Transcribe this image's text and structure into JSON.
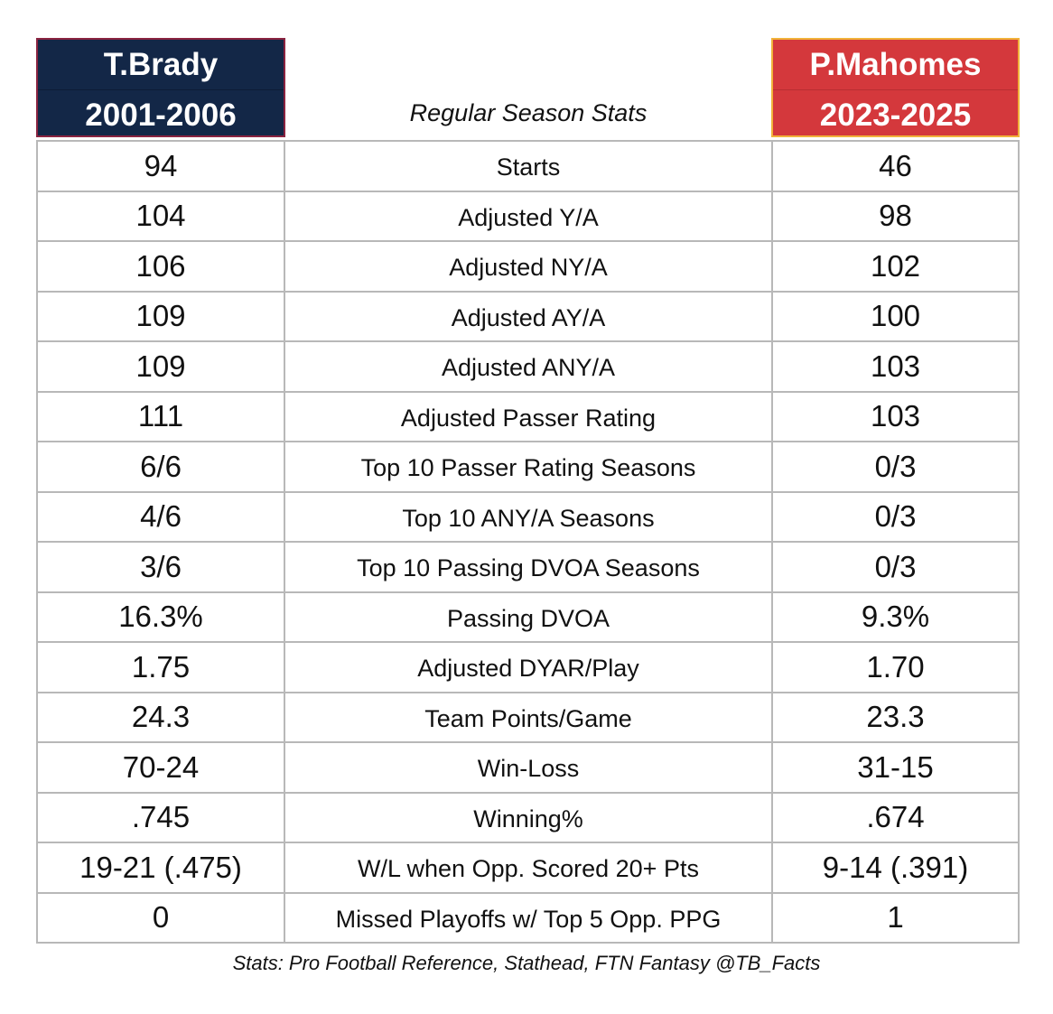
{
  "header": {
    "left_name": "T.Brady",
    "left_years": "2001-2006",
    "center_title": "Regular Season Stats",
    "right_name": "P.Mahomes",
    "right_years": "2023-2025",
    "left_color": "#132747",
    "right_color": "#d4383c"
  },
  "rows": [
    {
      "left": "94",
      "stat": "Starts",
      "right": "46"
    },
    {
      "left": "104",
      "stat": "Adjusted Y/A",
      "right": "98"
    },
    {
      "left": "106",
      "stat": "Adjusted NY/A",
      "right": "102"
    },
    {
      "left": "109",
      "stat": "Adjusted AY/A",
      "right": "100"
    },
    {
      "left": "109",
      "stat": "Adjusted ANY/A",
      "right": "103"
    },
    {
      "left": "111",
      "stat": "Adjusted Passer Rating",
      "right": "103"
    },
    {
      "left": "6/6",
      "stat": "Top 10 Passer Rating Seasons",
      "right": "0/3"
    },
    {
      "left": "4/6",
      "stat": "Top 10 ANY/A Seasons",
      "right": "0/3"
    },
    {
      "left": "3/6",
      "stat": "Top 10 Passing DVOA Seasons",
      "right": "0/3"
    },
    {
      "left": "16.3%",
      "stat": "Passing DVOA",
      "right": "9.3%"
    },
    {
      "left": "1.75",
      "stat": "Adjusted DYAR/Play",
      "right": "1.70"
    },
    {
      "left": "24.3",
      "stat": "Team Points/Game",
      "right": "23.3"
    },
    {
      "left": "70-24",
      "stat": "Win-Loss",
      "right": "31-15"
    },
    {
      "left": ".745",
      "stat": "Winning%",
      "right": ".674"
    },
    {
      "left": "19-21 (.475)",
      "stat": "W/L when Opp. Scored 20+ Pts",
      "right": "9-14 (.391)"
    },
    {
      "left": "0",
      "stat": "Missed Playoffs w/ Top 5 Opp. PPG",
      "right": "1"
    }
  ],
  "footer": {
    "text": "Stats: Pro Football Reference, Stathead, FTN Fantasy  @TB_Facts"
  }
}
